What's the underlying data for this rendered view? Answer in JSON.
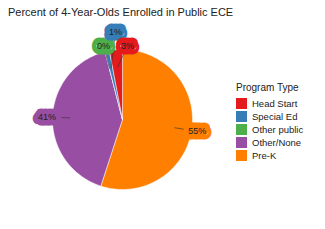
{
  "chart_data": {
    "type": "pie",
    "title": "Percent of 4-Year-Olds Enrolled in Public ECE",
    "legend_title": "Program Type",
    "categories": [
      "Head Start",
      "Special Ed",
      "Other public",
      "Other/None",
      "Pre-K"
    ],
    "values": [
      3,
      1,
      0,
      41,
      55
    ],
    "value_labels": [
      "3%",
      "1%",
      "0%",
      "41%",
      "55%"
    ],
    "colors": [
      "#e41a1c",
      "#377eb8",
      "#4daf4a",
      "#984ea3",
      "#ff7f00"
    ],
    "data_labels": true,
    "legend": "right"
  }
}
